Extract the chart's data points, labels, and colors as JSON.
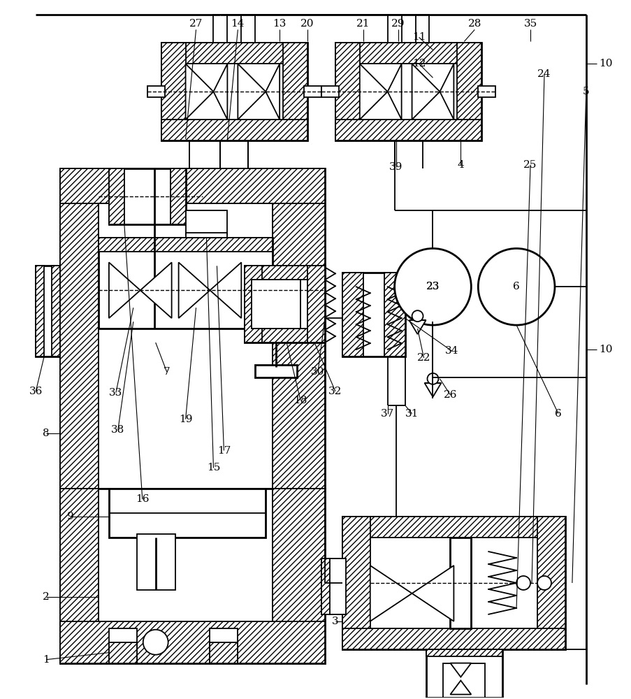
{
  "bg_color": "#ffffff",
  "lw": 1.3,
  "lw2": 2.0,
  "fig_width": 9.04,
  "fig_height": 10.0,
  "dpi": 100
}
